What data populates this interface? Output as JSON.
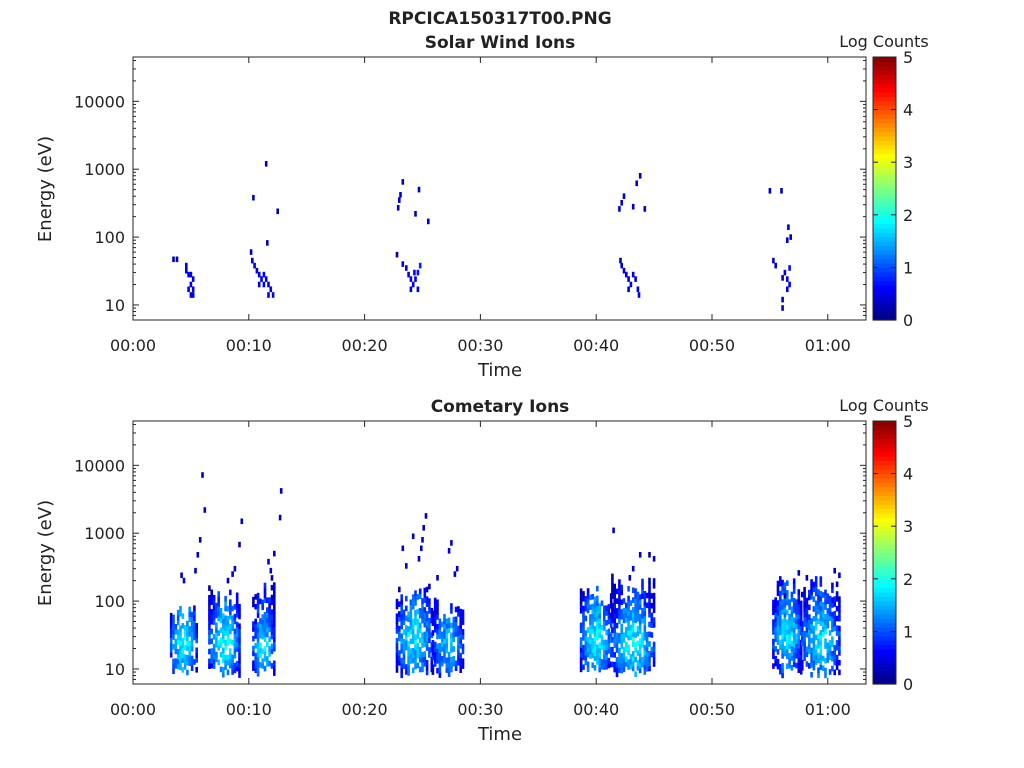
{
  "figure_title": "RPCICA150317T00.PNG",
  "colors": {
    "colormap": [
      "#00007f",
      "#0000ff",
      "#007fff",
      "#00ffff",
      "#7fff7f",
      "#ffff00",
      "#ff7f00",
      "#ff0000",
      "#7f0000"
    ],
    "background": "#ffffff",
    "axis": "#262626"
  },
  "chart_data": [
    {
      "type": "heatmap",
      "title": "Solar Wind Ions",
      "xlabel": "Time",
      "ylabel": "Energy (eV)",
      "colorbar_label": "Log Counts",
      "x_unit": "minutes since 00:00",
      "xlim_minutes": [
        0,
        63.3
      ],
      "x_ticks": [
        "00:00",
        "00:10",
        "00:20",
        "00:30",
        "00:40",
        "00:50",
        "01:00"
      ],
      "y_scale": "log",
      "ylim": [
        6,
        45000
      ],
      "y_ticks": [
        "10",
        "100",
        "1000",
        "10000"
      ],
      "colorbar_range": [
        0,
        5
      ],
      "colorbar_ticks": [
        "0",
        "1",
        "2",
        "3",
        "4",
        "5"
      ],
      "grid": false,
      "points": [
        [
          3.5,
          47,
          0.3
        ],
        [
          3.8,
          47,
          0.3
        ],
        [
          4.6,
          38,
          0.4
        ],
        [
          4.6,
          32,
          0.4
        ],
        [
          4.8,
          28,
          0.4
        ],
        [
          5.0,
          28,
          0.5
        ],
        [
          5.2,
          24,
          0.5
        ],
        [
          5.0,
          20,
          0.5
        ],
        [
          5.2,
          17,
          0.5
        ],
        [
          5.0,
          14,
          0.5
        ],
        [
          5.2,
          14,
          0.5
        ],
        [
          4.8,
          17,
          0.4
        ],
        [
          10.2,
          60,
          0.3
        ],
        [
          10.3,
          45,
          0.4
        ],
        [
          10.5,
          38,
          0.5
        ],
        [
          10.7,
          32,
          0.5
        ],
        [
          10.9,
          28,
          0.5
        ],
        [
          11.1,
          24,
          0.5
        ],
        [
          11.3,
          28,
          0.6
        ],
        [
          11.5,
          24,
          0.5
        ],
        [
          11.7,
          20,
          0.5
        ],
        [
          11.9,
          17,
          0.5
        ],
        [
          12.1,
          14,
          0.5
        ],
        [
          11.3,
          20,
          0.5
        ],
        [
          10.9,
          20,
          0.4
        ],
        [
          11.7,
          14,
          0.5
        ],
        [
          11.5,
          1200,
          0.3
        ],
        [
          10.4,
          380,
          0.3
        ],
        [
          12.5,
          240,
          0.3
        ],
        [
          11.6,
          82,
          0.3
        ],
        [
          22.8,
          55,
          0.3
        ],
        [
          22.9,
          270,
          0.4
        ],
        [
          23.0,
          350,
          0.4
        ],
        [
          23.1,
          420,
          0.4
        ],
        [
          23.3,
          650,
          0.3
        ],
        [
          23.3,
          40,
          0.4
        ],
        [
          23.6,
          35,
          0.5
        ],
        [
          23.8,
          28,
          0.5
        ],
        [
          24.0,
          24,
          0.6
        ],
        [
          24.2,
          20,
          0.5
        ],
        [
          24.4,
          24,
          0.6
        ],
        [
          24.6,
          30,
          0.7
        ],
        [
          24.8,
          38,
          0.8
        ],
        [
          24.6,
          17,
          0.5
        ],
        [
          24.0,
          17,
          0.5
        ],
        [
          24.3,
          30,
          0.6
        ],
        [
          24.7,
          500,
          0.3
        ],
        [
          25.5,
          170,
          0.3
        ],
        [
          24.4,
          220,
          0.3
        ],
        [
          42.1,
          45,
          0.3
        ],
        [
          42.2,
          38,
          0.4
        ],
        [
          42.4,
          32,
          0.4
        ],
        [
          42.6,
          28,
          0.5
        ],
        [
          42.8,
          24,
          0.5
        ],
        [
          43.0,
          20,
          0.5
        ],
        [
          43.2,
          28,
          0.5
        ],
        [
          43.4,
          24,
          0.5
        ],
        [
          43.6,
          17,
          0.5
        ],
        [
          43.7,
          14,
          0.5
        ],
        [
          42.8,
          17,
          0.4
        ],
        [
          42.2,
          320,
          0.4
        ],
        [
          42.4,
          400,
          0.4
        ],
        [
          42.0,
          260,
          0.3
        ],
        [
          43.5,
          620,
          0.3
        ],
        [
          43.8,
          800,
          0.3
        ],
        [
          43.2,
          280,
          0.3
        ],
        [
          44.2,
          260,
          0.3
        ],
        [
          55.0,
          480,
          0.3
        ],
        [
          56.0,
          480,
          0.3
        ],
        [
          55.3,
          45,
          0.4
        ],
        [
          55.5,
          38,
          0.4
        ],
        [
          56.1,
          25,
          0.3
        ],
        [
          56.3,
          30,
          0.5
        ],
        [
          56.5,
          24,
          0.6
        ],
        [
          56.7,
          35,
          0.7
        ],
        [
          56.7,
          20,
          0.6
        ],
        [
          56.5,
          17,
          0.5
        ],
        [
          56.1,
          12,
          0.4
        ],
        [
          56.1,
          9,
          0.4
        ],
        [
          56.5,
          90,
          0.3
        ],
        [
          56.6,
          140,
          0.3
        ],
        [
          56.8,
          100,
          0.3
        ]
      ]
    },
    {
      "type": "heatmap",
      "title": "Cometary Ions",
      "xlabel": "Time",
      "ylabel": "Energy (eV)",
      "colorbar_label": "Log Counts",
      "x_unit": "minutes since 00:00",
      "xlim_minutes": [
        0,
        63.3
      ],
      "x_ticks": [
        "00:00",
        "00:10",
        "00:20",
        "00:30",
        "00:40",
        "00:50",
        "01:00"
      ],
      "y_scale": "log",
      "ylim": [
        6,
        45000
      ],
      "y_ticks": [
        "10",
        "100",
        "1000",
        "10000"
      ],
      "colorbar_range": [
        0,
        5
      ],
      "colorbar_ticks": [
        "0",
        "1",
        "2",
        "3",
        "4",
        "5"
      ],
      "grid": false,
      "bursts": [
        {
          "t0": 3.3,
          "t1": 5.6,
          "core_e": 24,
          "top": 90,
          "peak": 1.9,
          "seed": 11
        },
        {
          "t0": 6.6,
          "t1": 9.2,
          "core_e": 24,
          "top": 170,
          "peak": 1.9,
          "seed": 12
        },
        {
          "t0": 10.4,
          "t1": 12.2,
          "core_e": 20,
          "top": 240,
          "peak": 1.8,
          "seed": 13
        },
        {
          "t0": 22.8,
          "t1": 25.8,
          "core_e": 30,
          "top": 180,
          "peak": 1.8,
          "seed": 14
        },
        {
          "t0": 25.9,
          "t1": 28.5,
          "core_e": 24,
          "top": 110,
          "peak": 1.6,
          "seed": 15
        },
        {
          "t0": 38.7,
          "t1": 41.2,
          "core_e": 28,
          "top": 180,
          "peak": 1.9,
          "seed": 16
        },
        {
          "t0": 41.4,
          "t1": 45.0,
          "core_e": 24,
          "top": 260,
          "peak": 1.9,
          "seed": 17
        },
        {
          "t0": 55.3,
          "t1": 57.6,
          "core_e": 32,
          "top": 220,
          "peak": 1.8,
          "seed": 18
        },
        {
          "t0": 57.8,
          "t1": 61.0,
          "core_e": 28,
          "top": 240,
          "peak": 1.8,
          "seed": 19
        }
      ],
      "points": [
        [
          6.0,
          7200,
          0.3
        ],
        [
          6.2,
          2200,
          0.3
        ],
        [
          5.8,
          800,
          0.3
        ],
        [
          5.6,
          480,
          0.3
        ],
        [
          5.4,
          280,
          0.3
        ],
        [
          4.4,
          200,
          0.4
        ],
        [
          4.2,
          240,
          0.3
        ],
        [
          9.4,
          1500,
          0.3
        ],
        [
          9.2,
          680,
          0.3
        ],
        [
          8.8,
          300,
          0.4
        ],
        [
          8.6,
          250,
          0.4
        ],
        [
          8.2,
          200,
          0.3
        ],
        [
          12.8,
          4200,
          0.3
        ],
        [
          12.7,
          1700,
          0.3
        ],
        [
          12.2,
          500,
          0.3
        ],
        [
          11.7,
          380,
          0.4
        ],
        [
          11.9,
          280,
          0.4
        ],
        [
          23.3,
          600,
          0.4
        ],
        [
          23.6,
          330,
          0.4
        ],
        [
          24.2,
          900,
          0.3
        ],
        [
          25.3,
          1800,
          0.3
        ],
        [
          25.1,
          1200,
          0.3
        ],
        [
          25.0,
          800,
          0.4
        ],
        [
          24.9,
          600,
          0.4
        ],
        [
          24.7,
          420,
          0.3
        ],
        [
          27.3,
          550,
          0.3
        ],
        [
          27.5,
          720,
          0.3
        ],
        [
          28.0,
          300,
          0.3
        ],
        [
          26.3,
          220,
          0.3
        ],
        [
          27.8,
          250,
          0.3
        ],
        [
          41.5,
          1100,
          0.3
        ],
        [
          43.8,
          480,
          0.3
        ],
        [
          44.6,
          480,
          0.3
        ],
        [
          45.0,
          420,
          0.3
        ],
        [
          43.2,
          300,
          0.4
        ],
        [
          42.9,
          220,
          0.3
        ],
        [
          57.5,
          260,
          0.3
        ],
        [
          58.2,
          220,
          0.3
        ],
        [
          60.6,
          280,
          0.3
        ],
        [
          61.0,
          240,
          0.3
        ],
        [
          56.3,
          120,
          0.3
        ]
      ]
    }
  ]
}
